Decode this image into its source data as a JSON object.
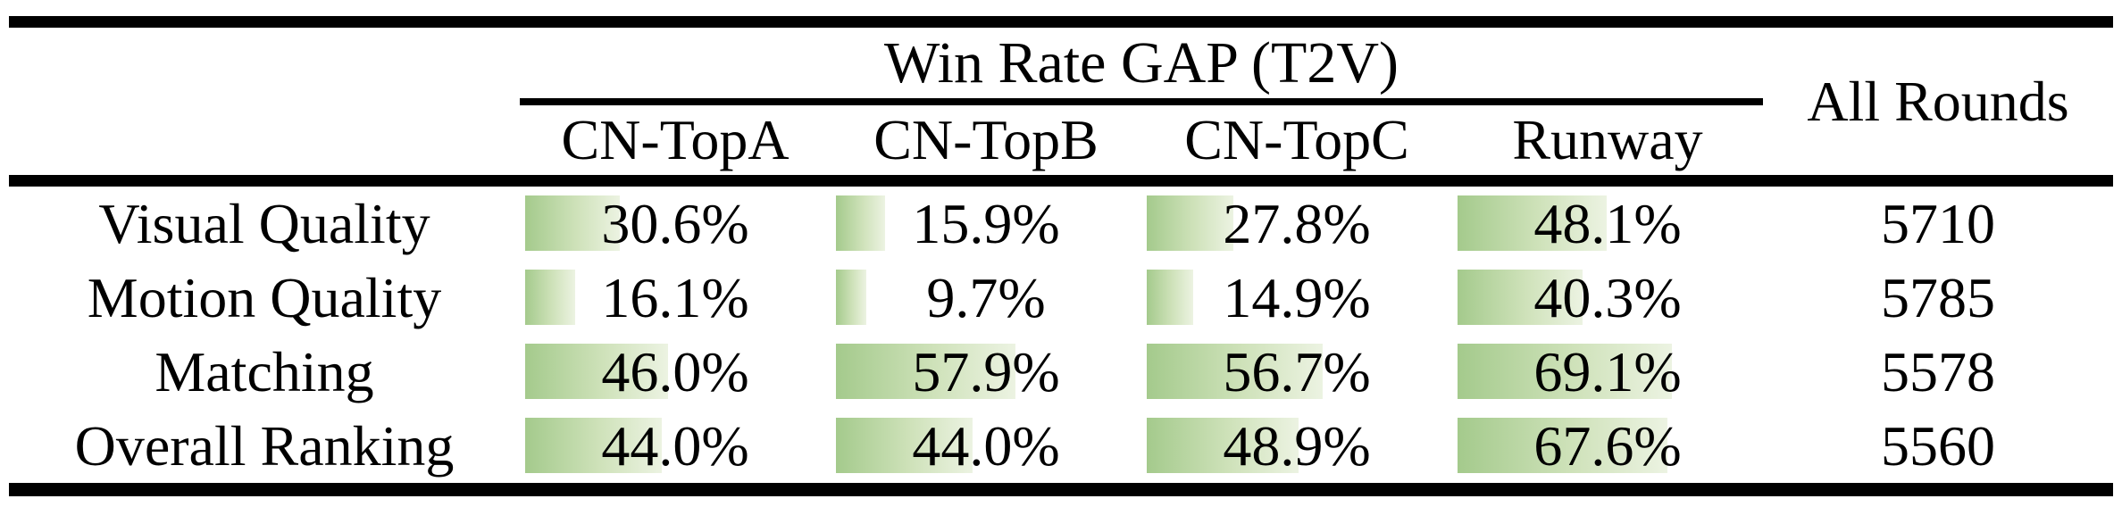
{
  "table": {
    "group_header": "Win Rate GAP (T2V)",
    "all_rounds_header": "All Rounds",
    "columns": [
      {
        "label": "CN-TopA"
      },
      {
        "label": "CN-TopB"
      },
      {
        "label": "CN-TopC"
      },
      {
        "label": "Runway"
      }
    ],
    "rows": [
      {
        "label": "Visual Quality",
        "cells": [
          {
            "text": "30.6%",
            "pct": 30.6
          },
          {
            "text": "15.9%",
            "pct": 15.9
          },
          {
            "text": "27.8%",
            "pct": 27.8
          },
          {
            "text": "48.1%",
            "pct": 48.1
          }
        ],
        "all_rounds": "5710"
      },
      {
        "label": "Motion Quality",
        "cells": [
          {
            "text": "16.1%",
            "pct": 16.1
          },
          {
            "text": "9.7%",
            "pct": 9.7
          },
          {
            "text": "14.9%",
            "pct": 14.9
          },
          {
            "text": "40.3%",
            "pct": 40.3
          }
        ],
        "all_rounds": "5785"
      },
      {
        "label": "Matching",
        "cells": [
          {
            "text": "46.0%",
            "pct": 46.0
          },
          {
            "text": "57.9%",
            "pct": 57.9
          },
          {
            "text": "56.7%",
            "pct": 56.7
          },
          {
            "text": "69.1%",
            "pct": 69.1
          }
        ],
        "all_rounds": "5578"
      },
      {
        "label": "Overall Ranking",
        "cells": [
          {
            "text": "44.0%",
            "pct": 44.0
          },
          {
            "text": "44.0%",
            "pct": 44.0
          },
          {
            "text": "48.9%",
            "pct": 48.9
          },
          {
            "text": "67.6%",
            "pct": 67.6
          }
        ],
        "all_rounds": "5560"
      }
    ],
    "colors": {
      "bar_gradient_start": "#a4ca8c",
      "bar_gradient_end": "#ecf3e2",
      "rule": "#000000",
      "text": "#000000",
      "background": "#ffffff"
    }
  },
  "chart_data": {
    "type": "table",
    "title": "Win Rate GAP (T2V)",
    "categories": [
      "Visual Quality",
      "Motion Quality",
      "Matching",
      "Overall Ranking"
    ],
    "series": [
      {
        "name": "CN-TopA",
        "values": [
          30.6,
          16.1,
          46.0,
          44.0
        ]
      },
      {
        "name": "CN-TopB",
        "values": [
          15.9,
          9.7,
          57.9,
          44.0
        ]
      },
      {
        "name": "CN-TopC",
        "values": [
          27.8,
          14.9,
          56.7,
          48.9
        ]
      },
      {
        "name": "Runway",
        "values": [
          48.1,
          40.3,
          69.1,
          67.6
        ]
      },
      {
        "name": "All Rounds",
        "values": [
          5710,
          5785,
          5578,
          5560
        ]
      }
    ],
    "value_unit": "percent (win-rate gap), All Rounds in counts",
    "bar_scale_max": 100
  }
}
